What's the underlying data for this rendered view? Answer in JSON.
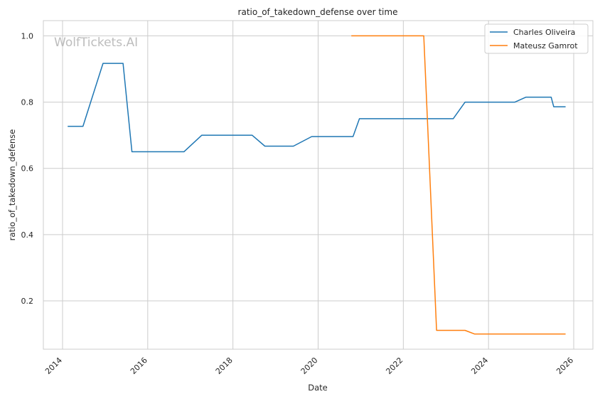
{
  "chart_data": {
    "type": "line",
    "title": "ratio_of_takedown_defense over time",
    "xlabel": "Date",
    "ylabel": "ratio_of_takedown_defense",
    "watermark": "WolfTickets.AI",
    "xlim": [
      2013.55,
      2026.45
    ],
    "ylim": [
      0.054,
      1.046
    ],
    "x_ticks": [
      2014,
      2016,
      2018,
      2020,
      2022,
      2024,
      2026
    ],
    "y_ticks": [
      0.2,
      0.4,
      0.6,
      0.8,
      1.0
    ],
    "x_tick_labels": [
      "2014",
      "2016",
      "2018",
      "2020",
      "2022",
      "2024",
      "2026"
    ],
    "y_tick_labels": [
      "0.2",
      "0.4",
      "0.6",
      "0.8",
      "1.0"
    ],
    "grid": true,
    "legend_position": "top-right",
    "series": [
      {
        "name": "Charles Oliveira",
        "color": "#1f77b4",
        "points": [
          [
            2014.12,
            0.727
          ],
          [
            2014.48,
            0.727
          ],
          [
            2014.95,
            0.917
          ],
          [
            2015.42,
            0.917
          ],
          [
            2015.63,
            0.65
          ],
          [
            2016.85,
            0.65
          ],
          [
            2017.27,
            0.7
          ],
          [
            2018.45,
            0.7
          ],
          [
            2018.75,
            0.667
          ],
          [
            2019.42,
            0.667
          ],
          [
            2019.85,
            0.696
          ],
          [
            2020.82,
            0.696
          ],
          [
            2020.97,
            0.75
          ],
          [
            2023.17,
            0.75
          ],
          [
            2023.45,
            0.8
          ],
          [
            2024.62,
            0.8
          ],
          [
            2024.88,
            0.815
          ],
          [
            2025.47,
            0.815
          ],
          [
            2025.53,
            0.786
          ],
          [
            2025.81,
            0.786
          ]
        ]
      },
      {
        "name": "Mateusz Gamrot",
        "color": "#ff7f0e",
        "points": [
          [
            2020.78,
            1.0
          ],
          [
            2022.48,
            1.0
          ],
          [
            2022.78,
            0.111
          ],
          [
            2023.45,
            0.111
          ],
          [
            2023.67,
            0.1
          ],
          [
            2025.81,
            0.1
          ]
        ]
      }
    ]
  }
}
